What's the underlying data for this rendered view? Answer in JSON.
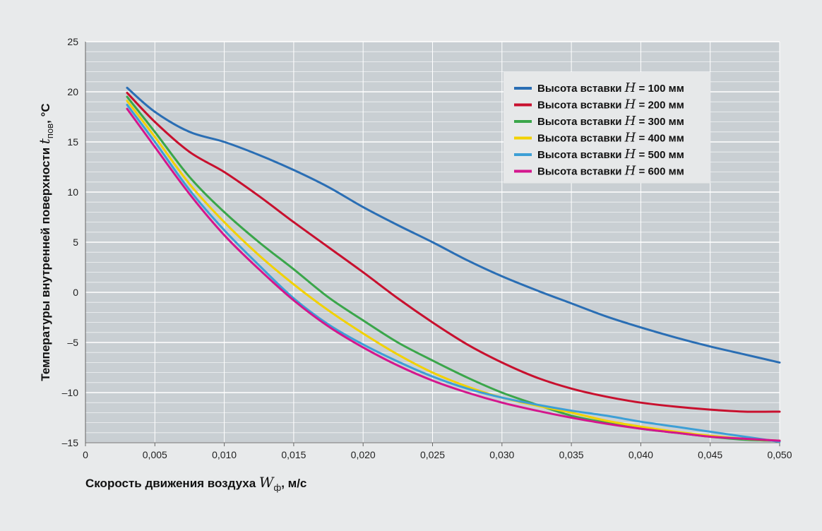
{
  "chart_data": {
    "type": "line",
    "xlabel_prefix": "Скорость движения воздуха ",
    "xlabel_var": "W",
    "xlabel_sub": "ф",
    "xlabel_suffix": ", м/с",
    "ylabel_prefix": "Температуры внутренней поверхности ",
    "ylabel_var": "t",
    "ylabel_sub": "пов",
    "ylabel_suffix": ", °С",
    "xlim": [
      0,
      0.05
    ],
    "ylim": [
      -15,
      25
    ],
    "x_ticks": [
      0,
      0.005,
      0.01,
      0.015,
      0.02,
      0.025,
      0.03,
      0.035,
      0.04,
      0.045,
      0.05
    ],
    "x_tick_labels": [
      "0",
      "0,005",
      "0,010",
      "0,015",
      "0,020",
      "0,025",
      "0,030",
      "0,035",
      "0,040",
      "0,045",
      "0,050"
    ],
    "y_ticks": [
      -15,
      -10,
      -5,
      0,
      5,
      10,
      15,
      20,
      25
    ],
    "y_tick_labels": [
      "–15",
      "–10",
      "–5",
      "0",
      "5",
      "10",
      "15",
      "20",
      "25"
    ],
    "grid": true,
    "legend_position": "top-right",
    "background": "#c9cfd3",
    "x": [
      0.003,
      0.005,
      0.0075,
      0.01,
      0.0125,
      0.015,
      0.0175,
      0.02,
      0.0225,
      0.025,
      0.0275,
      0.03,
      0.0325,
      0.035,
      0.0375,
      0.04,
      0.0425,
      0.045,
      0.0475,
      0.05
    ],
    "series": [
      {
        "legend_prefix": "Высота вставки ",
        "legend_var": "H",
        "legend_suffix": " = 100 мм",
        "color": "#2a6eb4",
        "values": [
          20.4,
          18.0,
          16.0,
          15.0,
          13.7,
          12.2,
          10.5,
          8.5,
          6.7,
          5.0,
          3.2,
          1.6,
          0.2,
          -1.1,
          -2.4,
          -3.5,
          -4.5,
          -5.4,
          -6.2,
          -7.0
        ]
      },
      {
        "legend_prefix": "Высота вставки ",
        "legend_var": "H",
        "legend_suffix": " = 200 мм",
        "color": "#c8102e",
        "values": [
          19.9,
          17.0,
          14.0,
          12.0,
          9.6,
          7.0,
          4.5,
          2.0,
          -0.6,
          -3.0,
          -5.2,
          -7.0,
          -8.5,
          -9.6,
          -10.4,
          -11.0,
          -11.4,
          -11.7,
          -11.9,
          -11.9
        ]
      },
      {
        "legend_prefix": "Высота вставки ",
        "legend_var": "H",
        "legend_suffix": " = 300 мм",
        "color": "#3aa64a",
        "values": [
          19.5,
          16.0,
          11.5,
          8.0,
          5.0,
          2.3,
          -0.5,
          -2.8,
          -5.0,
          -6.8,
          -8.5,
          -10.0,
          -11.2,
          -12.3,
          -13.0,
          -13.6,
          -14.0,
          -14.4,
          -14.7,
          -14.8
        ]
      },
      {
        "legend_prefix": "Высота вставки ",
        "legend_var": "H",
        "legend_suffix": " = 400 мм",
        "color": "#f2d100",
        "values": [
          19.1,
          15.5,
          10.8,
          7.0,
          3.7,
          0.8,
          -1.8,
          -4.1,
          -6.2,
          -8.0,
          -9.4,
          -10.5,
          -11.3,
          -12.0,
          -12.8,
          -13.4,
          -13.9,
          -14.3,
          -14.6,
          -14.8
        ]
      },
      {
        "legend_prefix": "Высота вставки ",
        "legend_var": "H",
        "legend_suffix": " = 500 мм",
        "color": "#3d9fd6",
        "values": [
          18.7,
          15.0,
          10.2,
          6.2,
          2.7,
          -0.6,
          -3.2,
          -5.2,
          -6.9,
          -8.4,
          -9.6,
          -10.5,
          -11.2,
          -11.8,
          -12.3,
          -12.9,
          -13.4,
          -13.9,
          -14.4,
          -14.9
        ]
      },
      {
        "legend_prefix": "Высота вставки ",
        "legend_var": "H",
        "legend_suffix": " = 600 мм",
        "color": "#d4168d",
        "values": [
          18.3,
          14.5,
          9.8,
          5.7,
          2.3,
          -0.8,
          -3.4,
          -5.5,
          -7.3,
          -8.8,
          -10.0,
          -11.0,
          -11.8,
          -12.5,
          -13.1,
          -13.6,
          -14.0,
          -14.4,
          -14.6,
          -14.8
        ]
      }
    ]
  }
}
